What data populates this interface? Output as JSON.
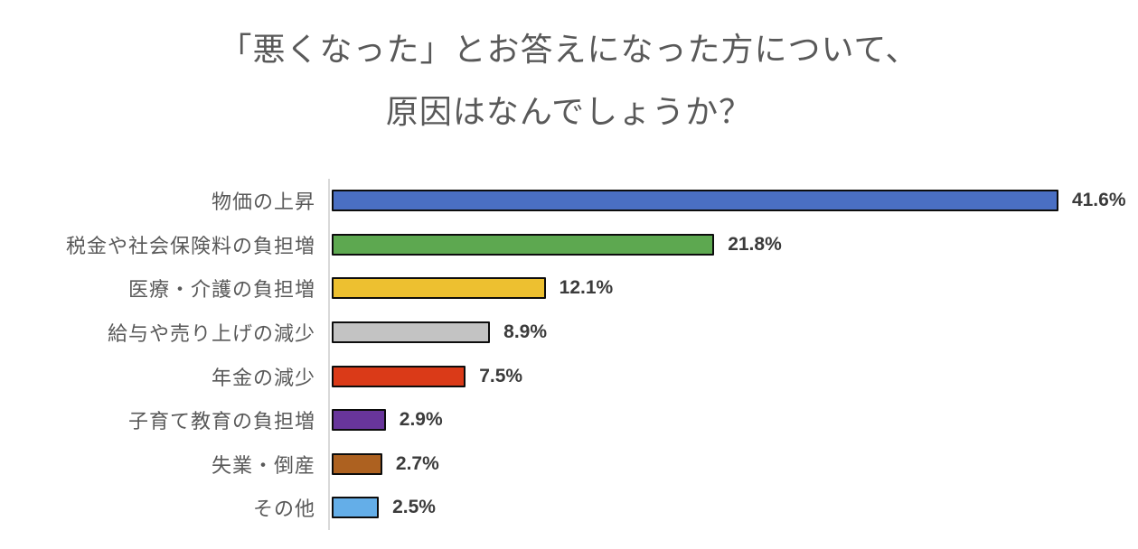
{
  "title": {
    "line1": "「悪くなった」とお答えになった方について、",
    "line2": "原因はなんでしょうか？"
  },
  "chart_data": {
    "type": "bar",
    "orientation": "horizontal",
    "title": "「悪くなった」とお答えになった方について、原因はなんでしょうか？",
    "categories": [
      "物価の上昇",
      "税金や社会保険料の負担増",
      "医療・介護の負担増",
      "給与や売り上げの減少",
      "年金の減少",
      "子育て教育の負担増",
      "失業・倒産",
      "その他"
    ],
    "values": [
      41.6,
      21.8,
      12.1,
      8.9,
      7.5,
      2.9,
      2.7,
      2.5
    ],
    "value_labels": [
      "41.6%",
      "21.8%",
      "12.1%",
      "8.9%",
      "7.5%",
      "2.9%",
      "2.7%",
      "2.5%"
    ],
    "bar_colors": [
      "#4A6FC3",
      "#5DA850",
      "#EDC030",
      "#C3C3C3",
      "#DA3A18",
      "#68359B",
      "#AD6120",
      "#64AEE8"
    ],
    "bar_border_color": "#0D0D0D",
    "axis_line_color": "#D9D9D9",
    "xlim": [
      0,
      45
    ],
    "grid": false,
    "legend": false,
    "value_labels_position": "outside-end"
  },
  "styles": {
    "title_color": "#595959",
    "category_label_color": "#595959",
    "value_label_color": "#3B3B3B",
    "background": "#FFFFFF"
  }
}
